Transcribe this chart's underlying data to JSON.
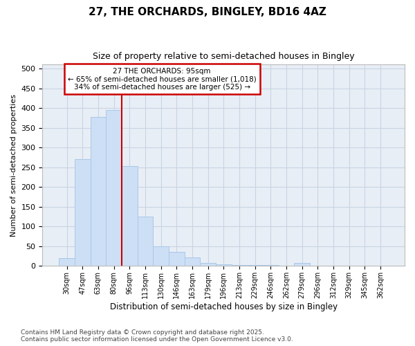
{
  "title": "27, THE ORCHARDS, BINGLEY, BD16 4AZ",
  "subtitle": "Size of property relative to semi-detached houses in Bingley",
  "xlabel": "Distribution of semi-detached houses by size in Bingley",
  "ylabel": "Number of semi-detached properties",
  "categories": [
    "30sqm",
    "47sqm",
    "63sqm",
    "80sqm",
    "96sqm",
    "113sqm",
    "130sqm",
    "146sqm",
    "163sqm",
    "179sqm",
    "196sqm",
    "213sqm",
    "229sqm",
    "246sqm",
    "262sqm",
    "279sqm",
    "296sqm",
    "312sqm",
    "329sqm",
    "345sqm",
    "362sqm"
  ],
  "values": [
    20,
    270,
    378,
    395,
    253,
    125,
    50,
    35,
    22,
    8,
    5,
    3,
    2,
    2,
    1,
    8,
    0,
    0,
    0,
    0,
    0
  ],
  "bar_color": "#cddff5",
  "bar_edge_color": "#a8c8e8",
  "grid_color": "#c8d4e4",
  "background_color": "#e8eef5",
  "vline_color": "#cc0000",
  "vline_x": 3.5,
  "annotation_title": "27 THE ORCHARDS: 95sqm",
  "annotation_line1": "← 65% of semi-detached houses are smaller (1,018)",
  "annotation_line2": "34% of semi-detached houses are larger (525) →",
  "annotation_box_color": "#cc0000",
  "footer_line1": "Contains HM Land Registry data © Crown copyright and database right 2025.",
  "footer_line2": "Contains public sector information licensed under the Open Government Licence v3.0.",
  "ylim_max": 510,
  "yticks": [
    0,
    50,
    100,
    150,
    200,
    250,
    300,
    350,
    400,
    450,
    500
  ]
}
